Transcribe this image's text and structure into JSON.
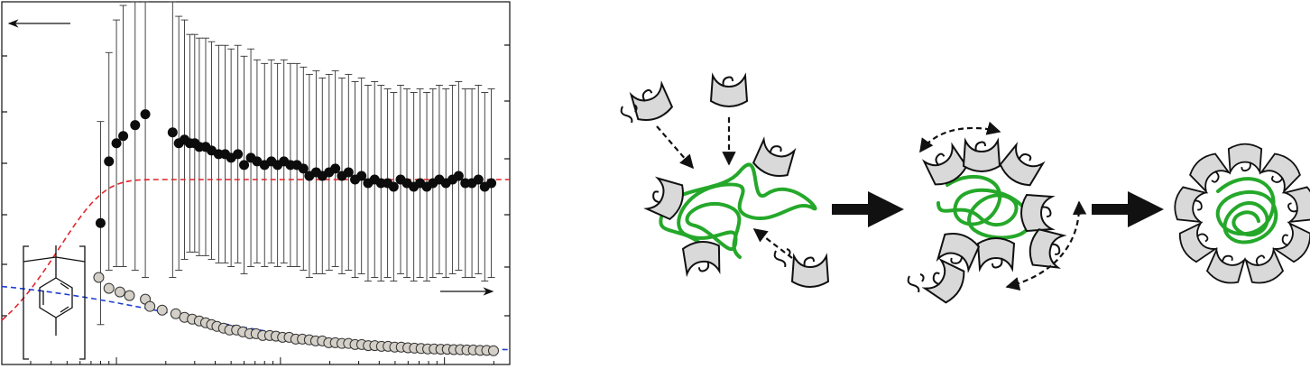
{
  "chart_data": {
    "type": "scatter",
    "xscale": "log",
    "grid": false,
    "series": [
      {
        "marker": "black",
        "x": [
          0.8,
          0.9,
          1.0,
          1.1,
          1.3,
          1.5,
          2.2,
          2.4,
          2.6,
          2.8,
          3.0,
          3.2,
          3.5,
          3.8,
          4.2,
          4.6,
          5.0,
          5.5,
          6.0,
          6.6,
          7.2,
          8.0,
          8.8,
          9.6,
          10.5,
          11.5,
          12.6,
          13.8,
          15.0,
          16.5,
          18.0,
          19.8,
          21.6,
          23.7,
          26.0,
          28.5,
          31.2,
          34.2,
          37.5,
          41.0,
          45.0,
          49.0,
          54.0,
          59.0,
          65.0,
          71.0,
          78.0,
          85.0,
          93.0,
          102.0,
          112.0,
          122.0,
          134.0,
          147.0,
          161.0,
          176.0,
          193.0
        ],
        "y": [
          0.39,
          0.56,
          0.61,
          0.63,
          0.66,
          0.69,
          0.64,
          0.61,
          0.62,
          0.61,
          0.61,
          0.6,
          0.6,
          0.59,
          0.58,
          0.58,
          0.57,
          0.58,
          0.55,
          0.57,
          0.56,
          0.55,
          0.56,
          0.55,
          0.56,
          0.55,
          0.55,
          0.54,
          0.52,
          0.53,
          0.52,
          0.53,
          0.54,
          0.52,
          0.53,
          0.51,
          0.52,
          0.5,
          0.51,
          0.5,
          0.5,
          0.49,
          0.51,
          0.5,
          0.49,
          0.5,
          0.49,
          0.5,
          0.51,
          0.5,
          0.51,
          0.52,
          0.5,
          0.5,
          0.51,
          0.49,
          0.5
        ],
        "err": [
          0.28,
          0.3,
          0.34,
          0.36,
          0.4,
          0.45,
          0.4,
          0.35,
          0.33,
          0.3,
          0.3,
          0.3,
          0.3,
          0.3,
          0.3,
          0.3,
          0.3,
          0.3,
          0.3,
          0.3,
          0.28,
          0.28,
          0.28,
          0.28,
          0.28,
          0.28,
          0.28,
          0.28,
          0.28,
          0.28,
          0.27,
          0.27,
          0.27,
          0.27,
          0.27,
          0.27,
          0.27,
          0.27,
          0.27,
          0.27,
          0.26,
          0.26,
          0.26,
          0.26,
          0.26,
          0.26,
          0.26,
          0.26,
          0.26,
          0.26,
          0.26,
          0.26,
          0.26,
          0.26,
          0.26,
          0.26,
          0.26
        ]
      },
      {
        "marker": "grey",
        "x": [
          0.78,
          0.9,
          1.05,
          1.2,
          1.5,
          1.6,
          1.9,
          2.3,
          2.6,
          2.9,
          3.2,
          3.5,
          3.8,
          4.1,
          4.5,
          4.9,
          5.4,
          5.9,
          6.5,
          7.1,
          7.8,
          8.6,
          9.4,
          10.3,
          11.3,
          12.4,
          13.6,
          15.0,
          16.4,
          18.0,
          19.7,
          21.6,
          23.7,
          26.0,
          28.5,
          31.3,
          34.3,
          37.6,
          41.3,
          45.3,
          49.7,
          54.5,
          59.8,
          65.6,
          72.0,
          79.0,
          86.6,
          95.0,
          104.0,
          114.0,
          125.0,
          137.0,
          150.0,
          165.0,
          181.0,
          199.0
        ],
        "y": [
          0.24,
          0.21,
          0.2,
          0.19,
          0.18,
          0.16,
          0.15,
          0.14,
          0.13,
          0.125,
          0.12,
          0.115,
          0.11,
          0.105,
          0.1,
          0.095,
          0.095,
          0.09,
          0.085,
          0.085,
          0.08,
          0.08,
          0.078,
          0.075,
          0.075,
          0.07,
          0.07,
          0.068,
          0.065,
          0.065,
          0.06,
          0.06,
          0.058,
          0.058,
          0.055,
          0.055,
          0.052,
          0.052,
          0.05,
          0.05,
          0.048,
          0.048,
          0.046,
          0.045,
          0.044,
          0.043,
          0.043,
          0.042,
          0.042,
          0.041,
          0.041,
          0.04,
          0.04,
          0.039,
          0.039,
          0.038
        ]
      }
    ]
  }
}
